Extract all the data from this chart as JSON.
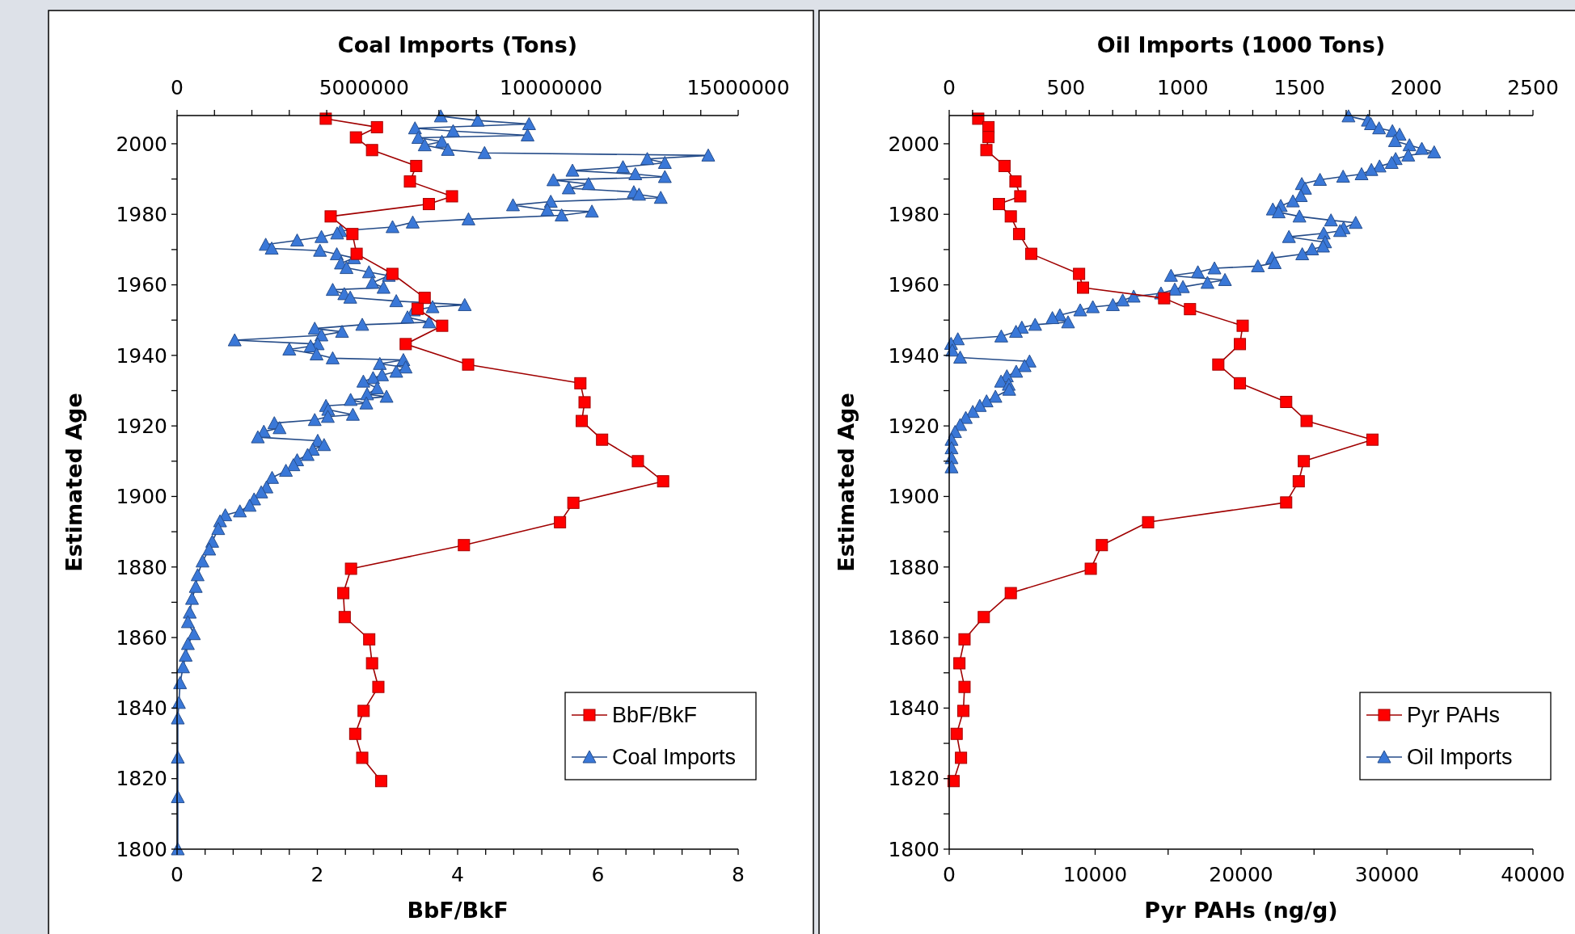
{
  "chart_data": [
    {
      "type": "line",
      "xlabel": "BbF/BkF",
      "x2label": "Coal Imports (Tons)",
      "ylabel": "Estimated Age",
      "legend": "bottom right",
      "xlim": [
        0,
        8
      ],
      "xticks": [
        0,
        {
          "value": 0.4,
          "label": null
        },
        {
          "value": 0.8,
          "label": null
        },
        {
          "value": 1.2,
          "label": null
        },
        {
          "value": 1.6,
          "label": null
        },
        2,
        {
          "value": 2.4,
          "label": null
        },
        {
          "value": 2.8,
          "label": null
        },
        {
          "value": 3.2,
          "label": null
        },
        {
          "value": 3.6,
          "label": null
        },
        4,
        {
          "value": 4.4,
          "label": null
        },
        {
          "value": 4.8,
          "label": null
        },
        {
          "value": 5.2,
          "label": null
        },
        {
          "value": 5.6,
          "label": null
        },
        6,
        {
          "value": 6.4,
          "label": null
        },
        {
          "value": 6.8,
          "label": null
        },
        {
          "value": 7.2,
          "label": null
        },
        {
          "value": 7.6,
          "label": null
        },
        8
      ],
      "x2lim": [
        0,
        15000000
      ],
      "x2ticks": [
        0,
        {
          "value": 1000000,
          "label": null
        },
        {
          "value": 2000000,
          "label": null
        },
        {
          "value": 3000000,
          "label": null
        },
        {
          "value": 4000000,
          "label": null
        },
        5000000,
        {
          "value": 6000000,
          "label": null
        },
        {
          "value": 7000000,
          "label": null
        },
        {
          "value": 8000000,
          "label": null
        },
        {
          "value": 9000000,
          "label": null
        },
        10000000,
        {
          "value": 11000000,
          "label": null
        },
        {
          "value": 12000000,
          "label": null
        },
        {
          "value": 13000000,
          "label": null
        },
        {
          "value": 14000000,
          "label": null
        },
        15000000
      ],
      "ylim": [
        1800,
        2008
      ],
      "yticks": [
        1800,
        {
          "value": 1810,
          "label": null
        },
        1820,
        {
          "value": 1830,
          "label": null
        },
        1840,
        {
          "value": 1850,
          "label": null
        },
        1860,
        {
          "value": 1870,
          "label": null
        },
        1880,
        {
          "value": 1890,
          "label": null
        },
        1900,
        {
          "value": 1910,
          "label": null
        },
        1920,
        {
          "value": 1930,
          "label": null
        },
        1940,
        {
          "value": 1950,
          "label": null
        },
        1960,
        {
          "value": 1970,
          "label": null
        },
        1980,
        {
          "value": 1990,
          "label": null
        },
        2000
      ],
      "series": [
        {
          "name": "BbF/BkF",
          "color": "#ff0000",
          "marker": "square",
          "x": [
            2.12,
            2.85,
            2.55,
            2.78,
            3.41,
            3.32,
            3.92,
            3.59,
            2.19,
            2.5,
            2.56,
            3.07,
            3.53,
            3.43,
            3.78,
            3.26,
            4.15,
            5.75,
            5.81,
            5.77,
            6.06,
            6.57,
            6.93,
            5.65,
            5.46,
            4.09,
            2.48,
            2.37,
            2.39,
            2.74,
            2.78,
            2.87,
            2.66,
            2.54,
            2.64,
            2.91
          ],
          "values": [
            2007.1,
            2004.7,
            2001.8,
            1998.2,
            1993.7,
            1989.3,
            1985.1,
            1982.9,
            1979.4,
            1974.4,
            1968.8,
            1963.1,
            1956.3,
            1953.2,
            1948.4,
            1943.2,
            1937.4,
            1932.1,
            1926.7,
            1921.4,
            1916.1,
            1910,
            1904.3,
            1898.2,
            1892.7,
            1886.2,
            1879.5,
            1872.6,
            1865.8,
            1859.5,
            1852.7,
            1846,
            1839.2,
            1832.7,
            1825.9,
            1819.3
          ]
        },
        {
          "name": "Coal Imports",
          "color": "#3a78d8",
          "marker": "triangle",
          "axis": "x2",
          "x": [
            7050000,
            8040000,
            9410000,
            6360000,
            7380000,
            9370000,
            6450000,
            7080000,
            6620000,
            7240000,
            8220000,
            14200000,
            12570000,
            13040000,
            11920000,
            10570000,
            12250000,
            13040000,
            10060000,
            11000000,
            10470000,
            12210000,
            12350000,
            12930000,
            9990000,
            8980000,
            9900000,
            11090000,
            10280000,
            7790000,
            6300000,
            5760000,
            4370000,
            4280000,
            3860000,
            3210000,
            2370000,
            2530000,
            3820000,
            4270000,
            4730000,
            4380000,
            4530000,
            5130000,
            5660000,
            5220000,
            5520000,
            4160000,
            4470000,
            4630000,
            5860000,
            7690000,
            6830000,
            6330000,
            6160000,
            6740000,
            4950000,
            3680000,
            4410000,
            3860000,
            1540000,
            3760000,
            3570000,
            3000000,
            3730000,
            4160000,
            6050000,
            5420000,
            6110000,
            5860000,
            5480000,
            5240000,
            4980000,
            5350000,
            5080000,
            5600000,
            4640000,
            5060000,
            3980000,
            4040000,
            4700000,
            4030000,
            3680000,
            2600000,
            2740000,
            2320000,
            2160000,
            3760000,
            3930000,
            3630000,
            3490000,
            3210000,
            3110000,
            2910000,
            2540000,
            2390000,
            2250000,
            2060000,
            1940000,
            1680000,
            1290000,
            1150000,
            1100000,
            940000,
            860000,
            680000,
            550000,
            500000,
            400000,
            340000,
            290000,
            450000,
            290000,
            230000,
            160000,
            80000,
            50000,
            20000,
            20000,
            20000,
            20000
          ],
          "values": [
            2007.8,
            2006.6,
            2005.6,
            2004.4,
            2003.6,
            2002.4,
            2001.7,
            2000.6,
            1999.6,
            1998.3,
            1997.4,
            1996.7,
            1995.7,
            1994.6,
            1993.4,
            1992.4,
            1991.4,
            1990.6,
            1989.7,
            1988.6,
            1987.4,
            1986.3,
            1985.6,
            1984.7,
            1983.6,
            1982.6,
            1981.2,
            1980.8,
            1979.7,
            1978.6,
            1977.7,
            1976.4,
            1975.3,
            1974.6,
            1973.6,
            1972.6,
            1971.4,
            1970.3,
            1969.7,
            1968.7,
            1967.6,
            1966.1,
            1964.8,
            1963.6,
            1962.6,
            1960.6,
            1959.2,
            1958.6,
            1957.4,
            1956.4,
            1955.4,
            1954.3,
            1953.7,
            1952.8,
            1950.8,
            1949.4,
            1948.7,
            1947.6,
            1946.7,
            1945.7,
            1944.3,
            1943.2,
            1942.6,
            1941.7,
            1940.3,
            1939.2,
            1938.7,
            1937.6,
            1936.6,
            1935.4,
            1934.4,
            1933.6,
            1932.6,
            1930.7,
            1929,
            1928.3,
            1927.4,
            1926.4,
            1925.7,
            1924.6,
            1923.2,
            1922.6,
            1921.7,
            1920.8,
            1919.4,
            1918.4,
            1916.8,
            1915.8,
            1914.6,
            1913.3,
            1911.8,
            1910.3,
            1908.9,
            1907.3,
            1905.3,
            1902.6,
            1901.2,
            1899.2,
            1897.4,
            1895.8,
            1894.7,
            1893,
            1890.8,
            1887.2,
            1885,
            1881.6,
            1877.7,
            1874.4,
            1871,
            1867.1,
            1864.4,
            1861,
            1858.2,
            1854.9,
            1851.6,
            1847.1,
            1841.5,
            1837.1,
            1826,
            1814.8,
            1800
          ]
        }
      ]
    },
    {
      "type": "line",
      "xlabel": "Pyr PAHs (ng/g)",
      "x2label": "Oil Imports (1000 Tons)",
      "ylabel": "Estimated Age",
      "legend": "bottom right",
      "xlim": [
        0,
        40000
      ],
      "xticks": [
        0,
        {
          "value": 5000,
          "label": null
        },
        10000,
        {
          "value": 15000,
          "label": null
        },
        20000,
        {
          "value": 25000,
          "label": null
        },
        30000,
        {
          "value": 35000,
          "label": null
        },
        40000
      ],
      "x2lim": [
        0,
        2500
      ],
      "x2ticks": [
        0,
        {
          "value": 100,
          "label": null
        },
        {
          "value": 200,
          "label": null
        },
        {
          "value": 300,
          "label": null
        },
        {
          "value": 400,
          "label": null
        },
        500,
        {
          "value": 600,
          "label": null
        },
        {
          "value": 700,
          "label": null
        },
        {
          "value": 800,
          "label": null
        },
        {
          "value": 900,
          "label": null
        },
        1000,
        {
          "value": 1100,
          "label": null
        },
        {
          "value": 1200,
          "label": null
        },
        {
          "value": 1300,
          "label": null
        },
        {
          "value": 1400,
          "label": null
        },
        1500,
        {
          "value": 1600,
          "label": null
        },
        {
          "value": 1700,
          "label": null
        },
        {
          "value": 1800,
          "label": null
        },
        {
          "value": 1900,
          "label": null
        },
        2000,
        {
          "value": 2100,
          "label": null
        },
        {
          "value": 2200,
          "label": null
        },
        {
          "value": 2300,
          "label": null
        },
        {
          "value": 2400,
          "label": null
        },
        2500
      ],
      "ylim": [
        1800,
        2008
      ],
      "yticks": [
        1800,
        {
          "value": 1810,
          "label": null
        },
        1820,
        {
          "value": 1830,
          "label": null
        },
        1840,
        {
          "value": 1850,
          "label": null
        },
        1860,
        {
          "value": 1870,
          "label": null
        },
        1880,
        {
          "value": 1890,
          "label": null
        },
        1900,
        {
          "value": 1910,
          "label": null
        },
        1920,
        {
          "value": 1930,
          "label": null
        },
        1940,
        {
          "value": 1950,
          "label": null
        },
        1960,
        {
          "value": 1970,
          "label": null
        },
        1980,
        {
          "value": 1990,
          "label": null
        },
        2000
      ],
      "series": [
        {
          "name": "Pyr PAHs",
          "color": "#ff0000",
          "marker": "square",
          "x": [
            1990,
            2690,
            2690,
            2550,
            3790,
            4540,
            4870,
            3410,
            4220,
            4790,
            5620,
            8900,
            9170,
            14730,
            16500,
            20110,
            19920,
            18440,
            19920,
            23090,
            24490,
            29000,
            24300,
            23950,
            23090,
            13630,
            10460,
            9700,
            4220,
            2370,
            1050,
            700,
            1050,
            970,
            510,
            810,
            300
          ],
          "values": [
            2007.1,
            2004.7,
            2001.9,
            1998.2,
            1993.7,
            1989.3,
            1985.1,
            1982.9,
            1979.4,
            1974.4,
            1968.8,
            1963.1,
            1959.2,
            1956.2,
            1953.1,
            1948.4,
            1943.2,
            1937.4,
            1932.1,
            1926.8,
            1921.4,
            1916.1,
            1910,
            1904.3,
            1898.3,
            1892.7,
            1886.2,
            1879.5,
            1872.6,
            1865.8,
            1859.5,
            1852.7,
            1846,
            1839.2,
            1832.7,
            1825.9,
            1819.3
          ]
        },
        {
          "name": "Oil Imports",
          "color": "#3a78d8",
          "marker": "triangle",
          "axis": "x2",
          "x": [
            1710,
            1793,
            1806,
            1841,
            1898,
            1929,
            1909,
            1971,
            2024,
            2077,
            1966,
            1912,
            1895,
            1843,
            1808,
            1766,
            1687,
            1588,
            1510,
            1524,
            1506,
            1472,
            1420,
            1386,
            1411,
            1500,
            1635,
            1741,
            1689,
            1674,
            1604,
            1455,
            1610,
            1601,
            1554,
            1512,
            1383,
            1394,
            1322,
            1136,
            1065,
            950,
            1181,
            1106,
            1001,
            966,
            907,
            790,
            743,
            701,
            615,
            561,
            474,
            442,
            509,
            368,
            311,
            286,
            223,
            37,
            8,
            13,
            47,
            344,
            323,
            287,
            247,
            222,
            255,
            257,
            198,
            160,
            131,
            101,
            71,
            47,
            25,
            10,
            10,
            10,
            10
          ],
          "values": [
            2007.8,
            2006.6,
            2005.6,
            2004.4,
            2003.6,
            2002.6,
            2000.8,
            1999.6,
            1998.6,
            1997.6,
            1996.7,
            1995.7,
            1994.6,
            1993.6,
            1992.6,
            1991.4,
            1990.7,
            1989.8,
            1988.6,
            1987.3,
            1985.2,
            1983.7,
            1982.4,
            1981.4,
            1980.6,
            1979.4,
            1978.3,
            1977.6,
            1976.1,
            1975.3,
            1974.6,
            1973.6,
            1972.1,
            1970.9,
            1970.1,
            1968.7,
            1967.6,
            1966.2,
            1965.3,
            1964.7,
            1963.6,
            1962.6,
            1961.4,
            1960.6,
            1959.4,
            1958.7,
            1957.6,
            1956.7,
            1955.6,
            1954.3,
            1953.7,
            1952.8,
            1951.4,
            1950.6,
            1949.4,
            1948.7,
            1947.9,
            1946.7,
            1945.4,
            1944.6,
            1943.3,
            1941.4,
            1939.4,
            1938.3,
            1937,
            1935.4,
            1934.1,
            1932.6,
            1931.7,
            1930.3,
            1928.3,
            1927,
            1925.7,
            1924,
            1922.3,
            1920.3,
            1918.3,
            1916.1,
            1913.7,
            1910.9,
            1908.3
          ]
        }
      ]
    }
  ]
}
